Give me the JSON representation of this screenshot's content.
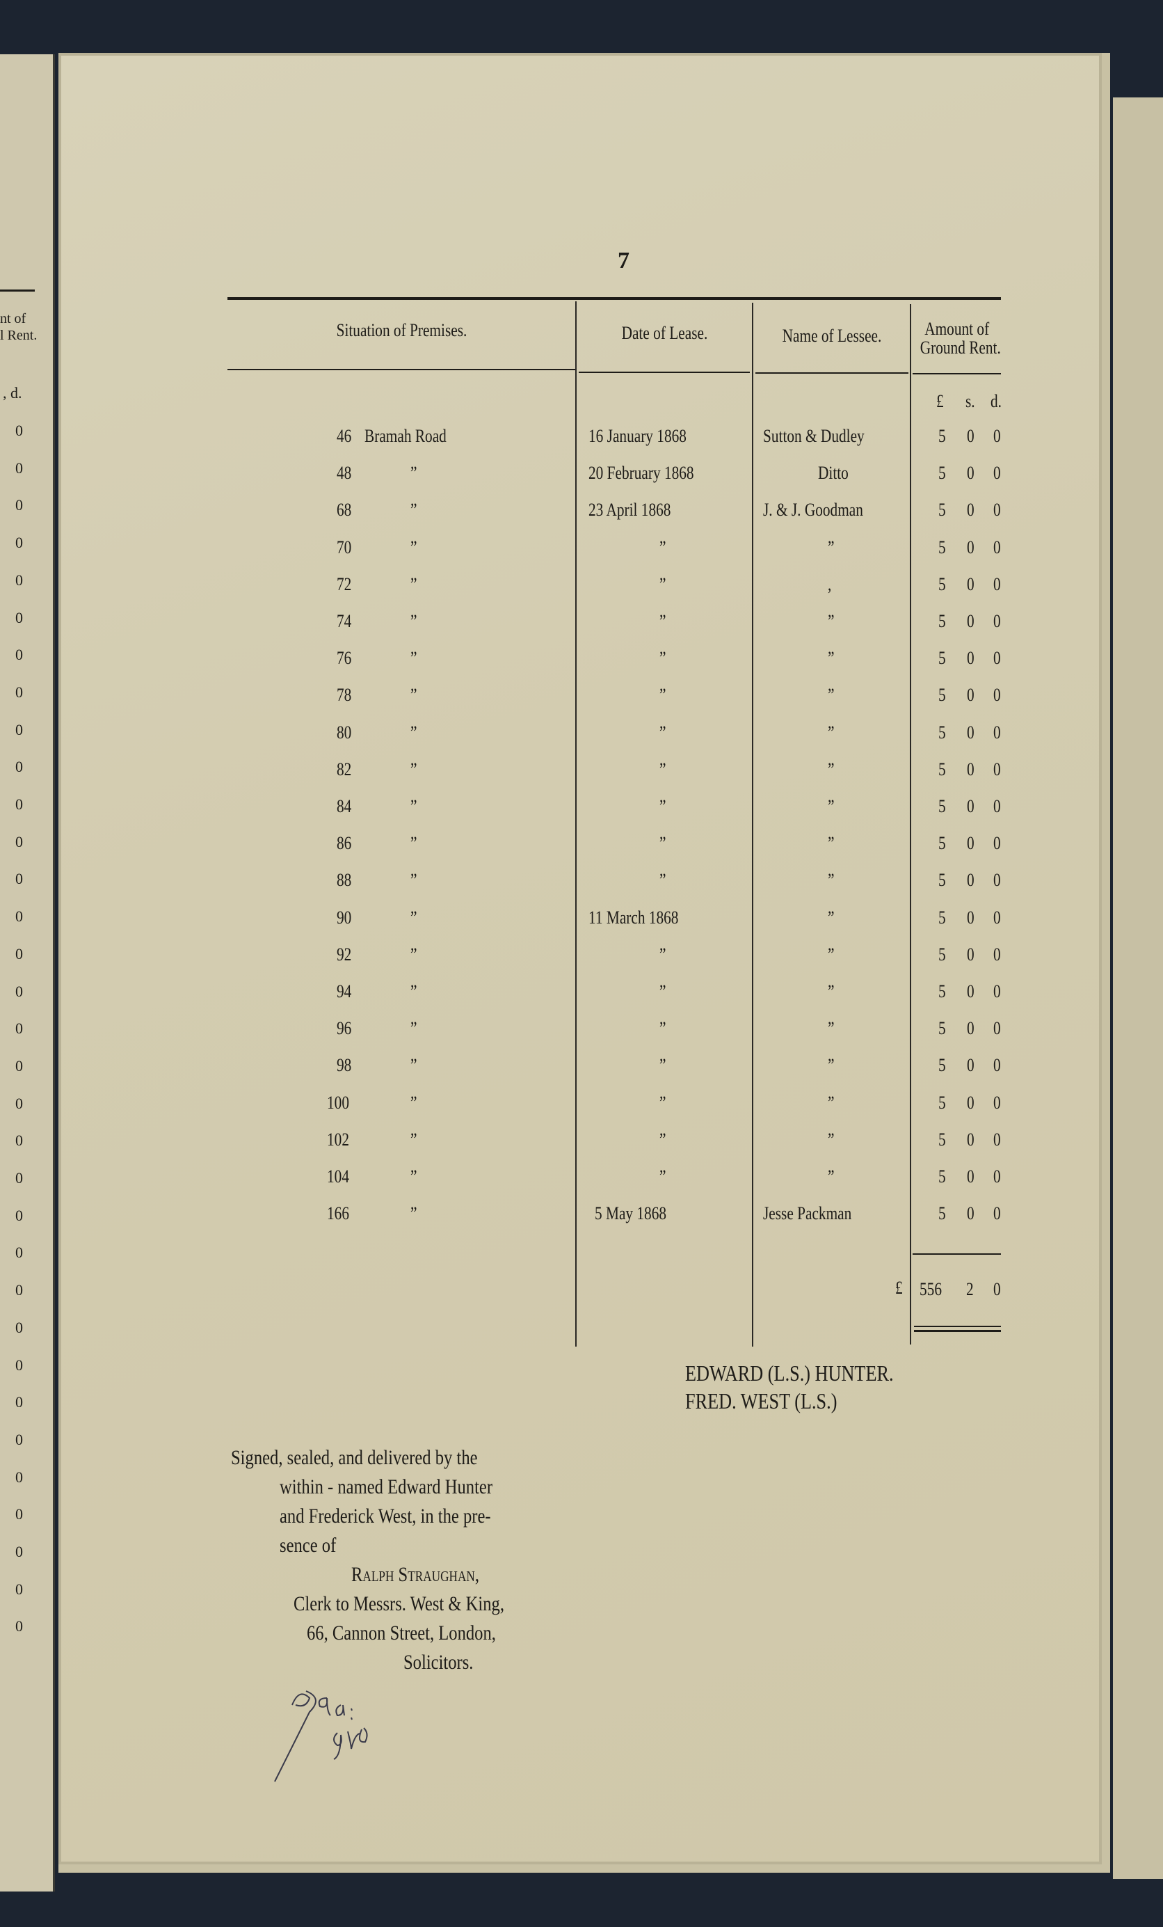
{
  "page_number": "7",
  "table": {
    "headers": [
      "Situation of Premises.",
      "Date of Lease.",
      "Name of Lessee.",
      "Amount of Ground Rent."
    ],
    "header_amount_lines": [
      "Amount of",
      "Ground Rent."
    ],
    "currency_units": [
      "£",
      "s.",
      "d."
    ],
    "rows": [
      {
        "no": "46",
        "street": "Bramah Road",
        "date": "16 January 1868",
        "lessee": "Sutton & Dudley",
        "l": "5",
        "s": "0",
        "d": "0"
      },
      {
        "no": "48",
        "street": "”",
        "date": "20 February 1868",
        "lessee": "Ditto",
        "l": "5",
        "s": "0",
        "d": "0"
      },
      {
        "no": "68",
        "street": "”",
        "date": "23 April 1868",
        "lessee": "J. & J. Goodman",
        "l": "5",
        "s": "0",
        "d": "0"
      },
      {
        "no": "70",
        "street": "”",
        "date": "”",
        "lessee": "”",
        "l": "5",
        "s": "0",
        "d": "0"
      },
      {
        "no": "72",
        "street": "”",
        "date": "”",
        "lessee": ",",
        "l": "5",
        "s": "0",
        "d": "0"
      },
      {
        "no": "74",
        "street": "”",
        "date": "”",
        "lessee": "”",
        "l": "5",
        "s": "0",
        "d": "0"
      },
      {
        "no": "76",
        "street": "”",
        "date": "”",
        "lessee": "”",
        "l": "5",
        "s": "0",
        "d": "0"
      },
      {
        "no": "78",
        "street": "”",
        "date": "”",
        "lessee": "”",
        "l": "5",
        "s": "0",
        "d": "0"
      },
      {
        "no": "80",
        "street": "”",
        "date": "”",
        "lessee": "”",
        "l": "5",
        "s": "0",
        "d": "0"
      },
      {
        "no": "82",
        "street": "”",
        "date": "”",
        "lessee": "”",
        "l": "5",
        "s": "0",
        "d": "0"
      },
      {
        "no": "84",
        "street": "”",
        "date": "”",
        "lessee": "”",
        "l": "5",
        "s": "0",
        "d": "0"
      },
      {
        "no": "86",
        "street": "”",
        "date": "”",
        "lessee": "”",
        "l": "5",
        "s": "0",
        "d": "0"
      },
      {
        "no": "88",
        "street": "”",
        "date": "”",
        "lessee": "”",
        "l": "5",
        "s": "0",
        "d": "0"
      },
      {
        "no": "90",
        "street": "”",
        "date": "11 March 1868",
        "lessee": "”",
        "l": "5",
        "s": "0",
        "d": "0"
      },
      {
        "no": "92",
        "street": "”",
        "date": "”",
        "lessee": "”",
        "l": "5",
        "s": "0",
        "d": "0"
      },
      {
        "no": "94",
        "street": "”",
        "date": "”",
        "lessee": "”",
        "l": "5",
        "s": "0",
        "d": "0"
      },
      {
        "no": "96",
        "street": "”",
        "date": "”",
        "lessee": "”",
        "l": "5",
        "s": "0",
        "d": "0"
      },
      {
        "no": "98",
        "street": "”",
        "date": "”",
        "lessee": "”",
        "l": "5",
        "s": "0",
        "d": "0"
      },
      {
        "no": "100",
        "street": "”",
        "date": "”",
        "lessee": "”",
        "l": "5",
        "s": "0",
        "d": "0"
      },
      {
        "no": "102",
        "street": "”",
        "date": "”",
        "lessee": "”",
        "l": "5",
        "s": "0",
        "d": "0"
      },
      {
        "no": "104",
        "street": "”",
        "date": "”",
        "lessee": "”",
        "l": "5",
        "s": "0",
        "d": "0"
      },
      {
        "no": "166",
        "street": "”",
        "date": "5 May 1868",
        "lessee": "Jesse Packman",
        "l": "5",
        "s": "0",
        "d": "0"
      }
    ],
    "total": {
      "currency": "£",
      "l": "556",
      "s": "2",
      "d": "0"
    }
  },
  "signatures": [
    "EDWARD (L.S.) HUNTER.",
    "FRED. WEST (L.S.)"
  ],
  "attestation": [
    "Signed, sealed, and delivered by the",
    "within - named Edward Hunter",
    "and Frederick West, in the pre-",
    "sence of",
    "Ralph Straughan,",
    "Clerk to Messrs. West & King,",
    "66, Cannon Street, London,",
    "Solicitors."
  ],
  "left_page": {
    "header": [
      "nt of",
      "l Rent."
    ],
    "units": ", d.",
    "values": [
      "0",
      "0",
      "0",
      "0",
      "0",
      "0",
      "0",
      "0",
      "0",
      "0",
      "0",
      "0",
      "0",
      "0",
      "0",
      "0",
      "0",
      "0",
      "0",
      "0",
      "0",
      "0",
      "0",
      "0",
      "0",
      "0",
      "0",
      "0",
      "0",
      "0",
      "0",
      "0",
      "0"
    ]
  },
  "colors": {
    "paper": "#d5ceb3",
    "ink": "#1e1c18",
    "background": "#1c2430"
  }
}
